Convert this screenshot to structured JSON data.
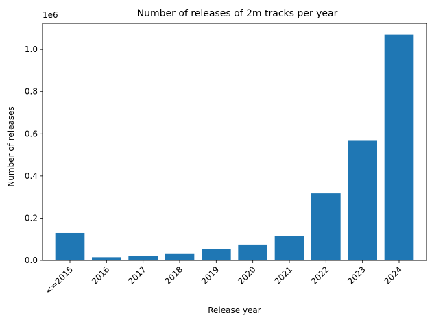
{
  "chart_data": {
    "type": "bar",
    "title": "Number of releases of 2m tracks per year",
    "xlabel": "Release year",
    "ylabel": "Number of releases",
    "y_scale_label": "1e6",
    "categories": [
      "<=2015",
      "2016",
      "2017",
      "2018",
      "2019",
      "2020",
      "2021",
      "2022",
      "2023",
      "2024"
    ],
    "values": [
      130000,
      15000,
      20000,
      30000,
      55000,
      75000,
      115000,
      318000,
      567000,
      1070000
    ],
    "ylim": [
      0,
      1124000
    ],
    "yticks": [
      0,
      200000,
      400000,
      600000,
      800000,
      1000000
    ],
    "ytick_labels": [
      "0.0",
      "0.2",
      "0.4",
      "0.6",
      "0.8",
      "1.0"
    ],
    "grid": false,
    "bar_color": "#1f77b4"
  }
}
